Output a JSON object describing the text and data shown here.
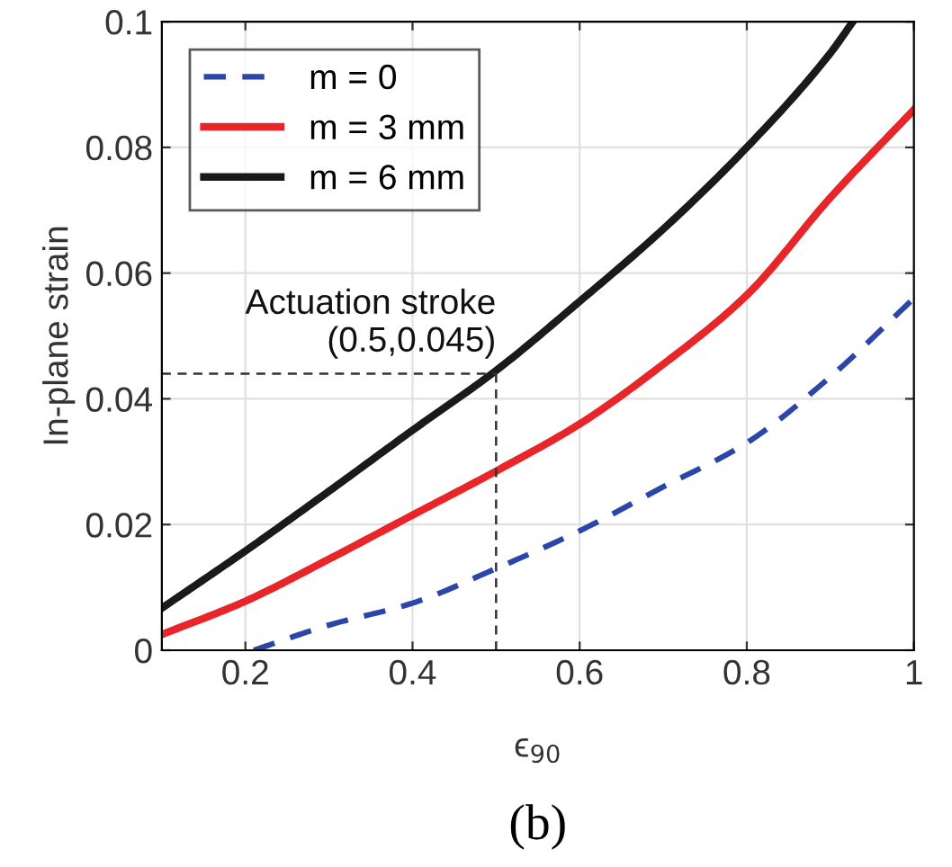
{
  "chart_data": {
    "type": "line",
    "xlabel": "ϵ$_{90}$",
    "ylabel": "In-plane strain",
    "xlim": [
      0.1,
      1
    ],
    "xticks": [
      0.2,
      0.4,
      0.6,
      0.8,
      1
    ],
    "ylim": [
      0,
      0.1
    ],
    "yticks": [
      0,
      0.02,
      0.04,
      0.06,
      0.08,
      0.1
    ],
    "grid": true,
    "legend": "top left",
    "series": [
      {
        "name": "m = 0",
        "color": "#2b46a8",
        "line_style": "dashed",
        "x": [
          0.21,
          0.3,
          0.4,
          0.5,
          0.6,
          0.7,
          0.8,
          0.9,
          1.0
        ],
        "values": [
          0,
          0.004,
          0.0075,
          0.013,
          0.019,
          0.026,
          0.033,
          0.0435,
          0.056
        ]
      },
      {
        "name": "m = 3 mm",
        "color": "#e8262a",
        "line_style": "solid",
        "x": [
          0.1,
          0.2,
          0.3,
          0.4,
          0.5,
          0.6,
          0.7,
          0.8,
          0.9,
          1.0
        ],
        "values": [
          0.0025,
          0.0078,
          0.0145,
          0.0215,
          0.0285,
          0.036,
          0.0455,
          0.0565,
          0.072,
          0.086
        ]
      },
      {
        "name": "m = 6 mm",
        "color": "#1a1a1a",
        "line_style": "solid",
        "x": [
          0.1,
          0.2,
          0.3,
          0.4,
          0.5,
          0.6,
          0.7,
          0.8,
          0.9,
          0.927
        ],
        "values": [
          0.0067,
          0.0158,
          0.0253,
          0.035,
          0.0445,
          0.0555,
          0.067,
          0.08,
          0.095,
          0.1
        ]
      }
    ],
    "ref_lines": [
      {
        "axis": "x",
        "value": 0.5,
        "color": "#333333",
        "line_style": "dashed"
      },
      {
        "axis": "y",
        "value": 0.044,
        "color": "#333333",
        "line_style": "dashed"
      }
    ],
    "annotations": [
      {
        "text": "Actuation stroke\n(0.5,0.045)",
        "x": 0.5,
        "y": 0.044
      },
      "(b)"
    ]
  }
}
